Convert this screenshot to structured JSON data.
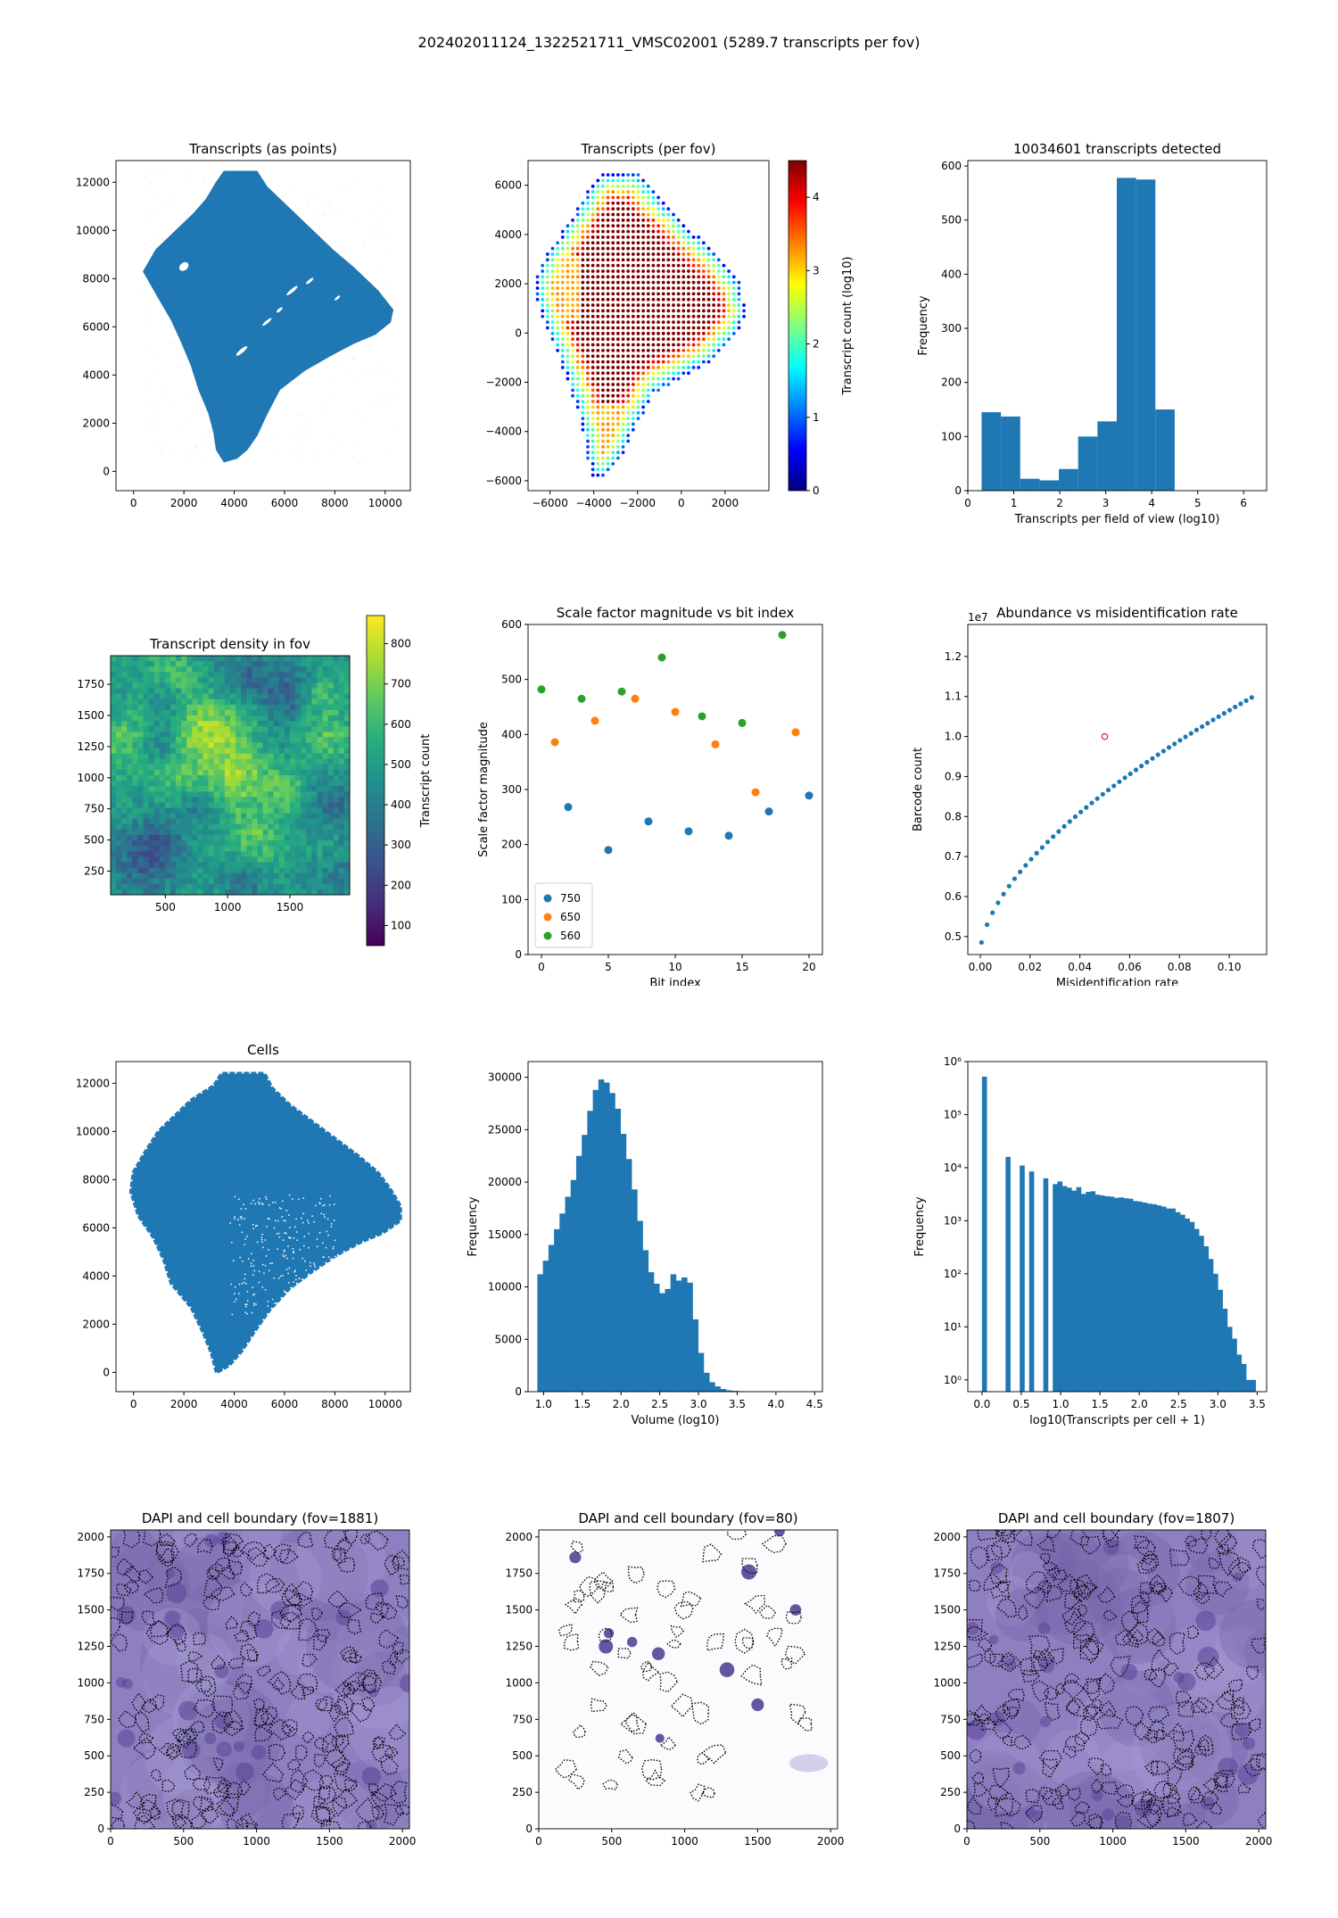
{
  "suptitle": "202402011124_1322521711_VMSC02001 (5289.7 transcripts per fov)",
  "colors": {
    "blue": "#1f77b4",
    "orange": "#ff7f0e",
    "green": "#2ca02c",
    "red": "#d62728",
    "dapi": "#7d6bb0"
  },
  "chart_data": [
    {
      "id": "p1",
      "type": "scatter",
      "title": "Transcripts (as points)",
      "xlim": [
        -700,
        11000
      ],
      "ylim": [
        -800,
        12900
      ],
      "xticks": [
        0,
        2000,
        4000,
        6000,
        8000,
        10000
      ],
      "yticks": [
        0,
        2000,
        4000,
        6000,
        8000,
        10000,
        12000
      ],
      "shape": [
        [
          3600,
          400
        ],
        [
          3300,
          900
        ],
        [
          3200,
          1600
        ],
        [
          3000,
          2400
        ],
        [
          2600,
          3400
        ],
        [
          2300,
          4400
        ],
        [
          1900,
          5400
        ],
        [
          1500,
          6300
        ],
        [
          1000,
          7200
        ],
        [
          400,
          8300
        ],
        [
          900,
          9200
        ],
        [
          1700,
          10000
        ],
        [
          2400,
          10700
        ],
        [
          2900,
          11300
        ],
        [
          3300,
          12000
        ],
        [
          3600,
          12450
        ],
        [
          4900,
          12450
        ],
        [
          5300,
          11800
        ],
        [
          6100,
          11000
        ],
        [
          7000,
          10100
        ],
        [
          7900,
          9200
        ],
        [
          8800,
          8400
        ],
        [
          9700,
          7500
        ],
        [
          10300,
          6700
        ],
        [
          10200,
          6200
        ],
        [
          9600,
          5700
        ],
        [
          8700,
          5300
        ],
        [
          7800,
          4800
        ],
        [
          6800,
          4200
        ],
        [
          5800,
          3400
        ],
        [
          5300,
          2400
        ],
        [
          4900,
          1500
        ],
        [
          4500,
          900
        ],
        [
          4100,
          550
        ]
      ]
    },
    {
      "id": "p2",
      "type": "scatter",
      "title": "Transcripts (per fov)",
      "xlim": [
        -7000,
        4000
      ],
      "ylim": [
        -6400,
        7000
      ],
      "xticks": [
        -6000,
        -4000,
        -2000,
        0,
        2000
      ],
      "yticks": [
        -6000,
        -4000,
        -2000,
        0,
        2000,
        4000,
        6000
      ],
      "colorbar": {
        "label": "Transcript count (log10)",
        "range": [
          0,
          4.5
        ],
        "ticks": [
          0,
          1,
          2,
          3,
          4
        ],
        "colormap": "jet"
      },
      "shape": [
        [
          -4000,
          -5900
        ],
        [
          -4300,
          -5000
        ],
        [
          -4500,
          -4000
        ],
        [
          -4800,
          -3000
        ],
        [
          -5200,
          -2000
        ],
        [
          -5600,
          -1000
        ],
        [
          -6100,
          0
        ],
        [
          -6800,
          1700
        ],
        [
          -6300,
          3000
        ],
        [
          -5300,
          4300
        ],
        [
          -4400,
          5600
        ],
        [
          -3700,
          6500
        ],
        [
          -2000,
          6500
        ],
        [
          -1200,
          5700
        ],
        [
          -200,
          4800
        ],
        [
          800,
          3900
        ],
        [
          1900,
          3000
        ],
        [
          2700,
          2000
        ],
        [
          3000,
          700
        ],
        [
          2300,
          -300
        ],
        [
          1300,
          -1200
        ],
        [
          0,
          -1800
        ],
        [
          -1200,
          -2400
        ],
        [
          -1900,
          -3500
        ],
        [
          -2600,
          -4800
        ],
        [
          -3300,
          -5700
        ]
      ]
    },
    {
      "id": "p3",
      "type": "bar",
      "title": "10034601 transcripts detected",
      "xlabel": "Transcripts per field of view (log10)",
      "ylabel": "Frequency",
      "xlim": [
        0,
        6.5
      ],
      "ylim": [
        0,
        610
      ],
      "xticks": [
        0,
        1,
        2,
        3,
        4,
        5,
        6
      ],
      "yticks": [
        0,
        100,
        200,
        300,
        400,
        500,
        600
      ],
      "bin_edges": [
        0.3,
        0.72,
        1.14,
        1.56,
        1.98,
        2.4,
        2.82,
        3.24,
        3.66,
        4.08,
        4.5,
        4.92,
        5.34,
        5.76,
        6.18
      ],
      "values": [
        145,
        137,
        22,
        19,
        40,
        100,
        128,
        578,
        575,
        150,
        0,
        0,
        0,
        0
      ]
    },
    {
      "id": "p4",
      "type": "heatmap",
      "title": "Transcript density in fov",
      "xlim": [
        60,
        1980
      ],
      "ylim": [
        60,
        1980
      ],
      "xticks": [
        500,
        1000,
        1500
      ],
      "yticks": [
        250,
        500,
        750,
        1000,
        1250,
        1500,
        1750
      ],
      "colorbar": {
        "label": "Transcript count",
        "range": [
          50,
          870
        ],
        "ticks": [
          100,
          200,
          300,
          400,
          500,
          600,
          700,
          800
        ],
        "colormap": "viridis"
      }
    },
    {
      "id": "p5",
      "type": "scatter",
      "title": "Scale factor magnitude vs bit index",
      "xlabel": "Bit index",
      "ylabel": "Scale factor magnitude",
      "xlim": [
        -1,
        21
      ],
      "ylim": [
        0,
        600
      ],
      "xticks": [
        0,
        5,
        10,
        15,
        20
      ],
      "yticks": [
        0,
        100,
        200,
        300,
        400,
        500,
        600
      ],
      "legend": "lower-left",
      "series": [
        {
          "name": "750",
          "x": [
            2,
            5,
            8,
            11,
            14,
            17,
            20
          ],
          "y": [
            268,
            190,
            242,
            224,
            216,
            260,
            289
          ]
        },
        {
          "name": "650",
          "x": [
            1,
            4,
            7,
            10,
            13,
            16,
            19
          ],
          "y": [
            386,
            425,
            465,
            441,
            382,
            295,
            404
          ]
        },
        {
          "name": "560",
          "x": [
            0,
            3,
            6,
            9,
            12,
            15,
            18
          ],
          "y": [
            482,
            465,
            478,
            540,
            433,
            421,
            581
          ]
        }
      ]
    },
    {
      "id": "p6",
      "type": "scatter",
      "title": "Abundance vs misidentification rate",
      "xlabel": "Misidentification rate",
      "ylabel": "Barcode count",
      "offset_label": "1e7",
      "xlim": [
        -0.005,
        0.115
      ],
      "ylim": [
        0.455,
        1.28
      ],
      "xticks": [
        0.0,
        0.02,
        0.04,
        0.06,
        0.08,
        0.1
      ],
      "yticks": [
        0.5,
        0.6,
        0.7,
        0.8,
        0.9,
        1.0,
        1.1,
        1.2
      ],
      "curve": {
        "x_start": 0.0005,
        "x_end": 0.109,
        "n": 50
      },
      "highlight": {
        "x": 0.05,
        "y": 1.0
      }
    },
    {
      "id": "p7",
      "type": "scatter",
      "title": "Cells",
      "xlim": [
        -700,
        11000
      ],
      "ylim": [
        -800,
        12900
      ],
      "xticks": [
        0,
        2000,
        4000,
        6000,
        8000,
        10000
      ],
      "yticks": [
        0,
        2000,
        4000,
        6000,
        8000,
        10000,
        12000
      ],
      "shape": [
        [
          3300,
          0
        ],
        [
          3100,
          800
        ],
        [
          2800,
          1600
        ],
        [
          2300,
          2700
        ],
        [
          1500,
          3700
        ],
        [
          1200,
          4700
        ],
        [
          800,
          5600
        ],
        [
          200,
          6500
        ],
        [
          -100,
          7500
        ],
        [
          0,
          8300
        ],
        [
          500,
          9200
        ],
        [
          1000,
          10000
        ],
        [
          1700,
          10700
        ],
        [
          2300,
          11300
        ],
        [
          3200,
          11900
        ],
        [
          3500,
          12400
        ],
        [
          5200,
          12400
        ],
        [
          5500,
          11800
        ],
        [
          6200,
          11100
        ],
        [
          7100,
          10400
        ],
        [
          8000,
          9700
        ],
        [
          8900,
          9000
        ],
        [
          9700,
          8300
        ],
        [
          10200,
          7600
        ],
        [
          10600,
          6900
        ],
        [
          10600,
          6300
        ],
        [
          9900,
          5800
        ],
        [
          9000,
          5400
        ],
        [
          8100,
          4900
        ],
        [
          7100,
          4200
        ],
        [
          6200,
          3500
        ],
        [
          5400,
          2600
        ],
        [
          4800,
          1700
        ],
        [
          4300,
          900
        ],
        [
          3800,
          300
        ]
      ]
    },
    {
      "id": "p8",
      "type": "bar",
      "title": "",
      "xlabel": "Volume (log10)",
      "ylabel": "Frequency",
      "xlim": [
        0.8,
        4.6
      ],
      "ylim": [
        0,
        31500
      ],
      "xticks": [
        1.0,
        1.5,
        2.0,
        2.5,
        3.0,
        3.5,
        4.0,
        4.5
      ],
      "yticks": [
        0,
        5000,
        10000,
        15000,
        20000,
        25000,
        30000
      ],
      "bin_start": 0.92,
      "bin_width": 0.0716,
      "values": [
        11200,
        12500,
        14000,
        15500,
        17000,
        18600,
        20200,
        22500,
        24500,
        26800,
        28800,
        29800,
        29500,
        28500,
        27000,
        24600,
        22200,
        19300,
        16300,
        13500,
        11400,
        10300,
        9400,
        9800,
        11200,
        10600,
        10900,
        10400,
        6900,
        3700,
        1800,
        900,
        500,
        250,
        130,
        80,
        50,
        30,
        20,
        10,
        6,
        3,
        2,
        1,
        0,
        0,
        0,
        1
      ]
    },
    {
      "id": "p9",
      "type": "bar",
      "title": "",
      "yscale": "log",
      "xlabel": "log10(Transcripts per cell + 1)",
      "ylabel": "Frequency",
      "xlim": [
        -0.18,
        3.62
      ],
      "ylim": [
        0.6,
        1000000
      ],
      "xticks": [
        0.0,
        0.5,
        1.0,
        1.5,
        2.0,
        2.5,
        3.0,
        3.5
      ],
      "yticks": [
        1,
        10,
        100,
        1000,
        10000,
        100000,
        1000000
      ],
      "ytick_labels": [
        "10⁰",
        "10¹",
        "10²",
        "10³",
        "10⁴",
        "10⁵",
        "10⁶"
      ],
      "bin_edges": [
        0,
        0.06,
        0.3,
        0.36,
        0.48,
        0.54,
        0.6,
        0.66,
        0.78,
        0.84,
        0.9,
        0.96,
        1.02,
        1.08,
        1.14,
        1.2,
        1.26,
        1.32,
        1.38,
        1.44,
        1.5,
        1.56,
        1.62,
        1.68,
        1.74,
        1.8,
        1.86,
        1.92,
        1.98,
        2.04,
        2.1,
        2.16,
        2.22,
        2.28,
        2.34,
        2.4,
        2.46,
        2.52,
        2.58,
        2.64,
        2.7,
        2.76,
        2.82,
        2.88,
        2.94,
        3.0,
        3.06,
        3.12,
        3.18,
        3.24,
        3.3,
        3.36,
        3.42,
        3.48
      ],
      "values": [
        520000,
        0,
        16000,
        0,
        11000,
        0,
        8500,
        0,
        6300,
        0,
        4900,
        5500,
        4500,
        4200,
        3700,
        4300,
        3200,
        3500,
        3600,
        3100,
        3000,
        2900,
        2850,
        2700,
        2750,
        2650,
        2600,
        2350,
        2300,
        2200,
        2100,
        2050,
        1950,
        1850,
        1700,
        1700,
        1450,
        1300,
        1100,
        950,
        700,
        520,
        330,
        190,
        100,
        50,
        22,
        10,
        6,
        3,
        2,
        1,
        1
      ]
    },
    {
      "id": "p10",
      "type": "heatmap",
      "title": "DAPI and cell boundary (fov=1881)",
      "xlim": [
        0,
        2048
      ],
      "ylim": [
        0,
        2048
      ],
      "xticks": [
        0,
        500,
        1000,
        1500,
        2000
      ],
      "yticks": [
        0,
        250,
        500,
        750,
        1000,
        1250,
        1500,
        1750,
        2000
      ],
      "density": "dense"
    },
    {
      "id": "p11",
      "type": "heatmap",
      "title": "DAPI and cell boundary (fov=80)",
      "xlim": [
        0,
        2048
      ],
      "ylim": [
        0,
        2048
      ],
      "xticks": [
        0,
        500,
        1000,
        1500,
        2000
      ],
      "yticks": [
        0,
        250,
        500,
        750,
        1000,
        1250,
        1500,
        1750,
        2000
      ],
      "density": "sparse"
    },
    {
      "id": "p12",
      "type": "heatmap",
      "title": "DAPI and cell boundary (fov=1807)",
      "xlim": [
        0,
        2048
      ],
      "ylim": [
        0,
        2048
      ],
      "xticks": [
        0,
        500,
        1000,
        1500,
        2000
      ],
      "yticks": [
        0,
        250,
        500,
        750,
        1000,
        1250,
        1500,
        1750,
        2000
      ],
      "density": "dense"
    }
  ]
}
